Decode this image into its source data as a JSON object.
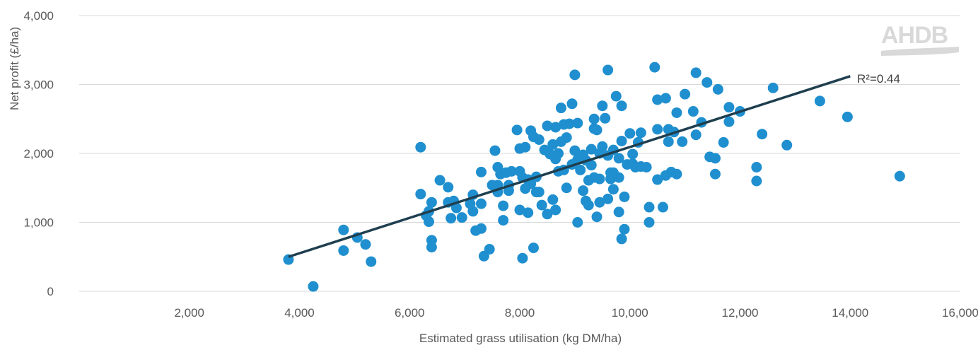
{
  "chart_data": {
    "type": "scatter",
    "xlabel": "Estimated grass utilisation (kg DM/ha)",
    "ylabel": "Net profit (£/ha)",
    "xlim": [
      0,
      16000
    ],
    "ylim": [
      0,
      4000
    ],
    "x_ticks": [
      "2,000",
      "4,000",
      "6,000",
      "8,000",
      "10,000",
      "12,000",
      "14,000",
      "16,000"
    ],
    "y_ticks": [
      "0",
      "1,000",
      "2,000",
      "3,000",
      "4,000"
    ],
    "grid": "horizontal",
    "point_color": "#1f8fcf",
    "trendline_color": "#1f3f4f",
    "trendline": {
      "x": [
        3800,
        14000
      ],
      "y": [
        500,
        3120
      ]
    },
    "annotation": "R²=0.44",
    "logo_text": "AHDB",
    "points": [
      [
        3800,
        460
      ],
      [
        4250,
        70
      ],
      [
        4800,
        890
      ],
      [
        4800,
        590
      ],
      [
        5050,
        780
      ],
      [
        5200,
        680
      ],
      [
        5300,
        430
      ],
      [
        6200,
        2090
      ],
      [
        6200,
        1410
      ],
      [
        6300,
        1100
      ],
      [
        6350,
        1010
      ],
      [
        6350,
        1160
      ],
      [
        6400,
        1290
      ],
      [
        6400,
        740
      ],
      [
        6400,
        640
      ],
      [
        6550,
        1610
      ],
      [
        6700,
        1510
      ],
      [
        6700,
        1290
      ],
      [
        6750,
        1060
      ],
      [
        6800,
        1310
      ],
      [
        6850,
        1210
      ],
      [
        6950,
        1070
      ],
      [
        7100,
        1270
      ],
      [
        7150,
        1400
      ],
      [
        7150,
        1160
      ],
      [
        7200,
        880
      ],
      [
        7300,
        1730
      ],
      [
        7300,
        1270
      ],
      [
        7300,
        910
      ],
      [
        7350,
        510
      ],
      [
        7450,
        610
      ],
      [
        7500,
        1540
      ],
      [
        7550,
        2040
      ],
      [
        7600,
        1540
      ],
      [
        7600,
        1440
      ],
      [
        7600,
        1800
      ],
      [
        7650,
        1700
      ],
      [
        7700,
        1240
      ],
      [
        7700,
        1030
      ],
      [
        7750,
        1720
      ],
      [
        7800,
        1540
      ],
      [
        7800,
        1460
      ],
      [
        7850,
        1740
      ],
      [
        7950,
        2340
      ],
      [
        8000,
        2070
      ],
      [
        8000,
        1740
      ],
      [
        8000,
        1180
      ],
      [
        8050,
        1650
      ],
      [
        8050,
        480
      ],
      [
        8100,
        2090
      ],
      [
        8100,
        1490
      ],
      [
        8150,
        1620
      ],
      [
        8150,
        1140
      ],
      [
        8200,
        2330
      ],
      [
        8200,
        1560
      ],
      [
        8250,
        2240
      ],
      [
        8250,
        630
      ],
      [
        8300,
        1440
      ],
      [
        8300,
        1660
      ],
      [
        8350,
        2200
      ],
      [
        8350,
        1440
      ],
      [
        8400,
        1250
      ],
      [
        8450,
        2050
      ],
      [
        8500,
        2400
      ],
      [
        8500,
        1120
      ],
      [
        8550,
        1990
      ],
      [
        8600,
        2130
      ],
      [
        8600,
        1330
      ],
      [
        8650,
        2380
      ],
      [
        8650,
        1920
      ],
      [
        8650,
        1180
      ],
      [
        8700,
        2000
      ],
      [
        8700,
        1740
      ],
      [
        8750,
        2660
      ],
      [
        8750,
        2170
      ],
      [
        8800,
        2420
      ],
      [
        8800,
        1760
      ],
      [
        8850,
        1500
      ],
      [
        8850,
        2230
      ],
      [
        8900,
        2430
      ],
      [
        8950,
        2720
      ],
      [
        8950,
        1840
      ],
      [
        9000,
        3140
      ],
      [
        9000,
        2040
      ],
      [
        9050,
        2440
      ],
      [
        9050,
        1910
      ],
      [
        9050,
        1000
      ],
      [
        9100,
        1760
      ],
      [
        9150,
        1980
      ],
      [
        9150,
        1460
      ],
      [
        9200,
        1900
      ],
      [
        9200,
        1310
      ],
      [
        9250,
        1610
      ],
      [
        9250,
        1250
      ],
      [
        9300,
        1830
      ],
      [
        9300,
        2060
      ],
      [
        9350,
        1650
      ],
      [
        9350,
        2500
      ],
      [
        9350,
        2360
      ],
      [
        9400,
        1080
      ],
      [
        9400,
        2340
      ],
      [
        9450,
        1290
      ],
      [
        9450,
        2000
      ],
      [
        9450,
        1630
      ],
      [
        9500,
        2100
      ],
      [
        9500,
        2690
      ],
      [
        9550,
        2510
      ],
      [
        9600,
        3210
      ],
      [
        9600,
        1970
      ],
      [
        9600,
        1340
      ],
      [
        9650,
        1720
      ],
      [
        9650,
        1630
      ],
      [
        9700,
        1480
      ],
      [
        9700,
        2050
      ],
      [
        9700,
        1720
      ],
      [
        9750,
        2830
      ],
      [
        9800,
        1930
      ],
      [
        9800,
        1150
      ],
      [
        9800,
        1650
      ],
      [
        9850,
        760
      ],
      [
        9850,
        2180
      ],
      [
        9850,
        2690
      ],
      [
        9900,
        900
      ],
      [
        9900,
        1370
      ],
      [
        9950,
        1840
      ],
      [
        10000,
        2290
      ],
      [
        10050,
        1850
      ],
      [
        10050,
        1990
      ],
      [
        10100,
        1800
      ],
      [
        10150,
        2160
      ],
      [
        10200,
        2300
      ],
      [
        10200,
        1810
      ],
      [
        10300,
        1800
      ],
      [
        10350,
        1220
      ],
      [
        10350,
        1000
      ],
      [
        10450,
        3250
      ],
      [
        10500,
        2780
      ],
      [
        10500,
        2350
      ],
      [
        10500,
        1620
      ],
      [
        10600,
        1220
      ],
      [
        10650,
        1680
      ],
      [
        10650,
        2800
      ],
      [
        10700,
        2350
      ],
      [
        10700,
        2170
      ],
      [
        10750,
        1730
      ],
      [
        10800,
        2310
      ],
      [
        10850,
        1700
      ],
      [
        10850,
        2590
      ],
      [
        10950,
        2170
      ],
      [
        11000,
        2860
      ],
      [
        11150,
        2610
      ],
      [
        11200,
        3170
      ],
      [
        11200,
        2270
      ],
      [
        11300,
        2450
      ],
      [
        11400,
        3030
      ],
      [
        11450,
        1950
      ],
      [
        11550,
        1930
      ],
      [
        11550,
        1700
      ],
      [
        11600,
        2930
      ],
      [
        11700,
        2160
      ],
      [
        11800,
        2670
      ],
      [
        11800,
        2460
      ],
      [
        12000,
        2610
      ],
      [
        12300,
        1800
      ],
      [
        12300,
        1600
      ],
      [
        12400,
        2280
      ],
      [
        12600,
        2950
      ],
      [
        12850,
        2120
      ],
      [
        13450,
        2760
      ],
      [
        13950,
        2530
      ],
      [
        14900,
        1670
      ]
    ]
  }
}
